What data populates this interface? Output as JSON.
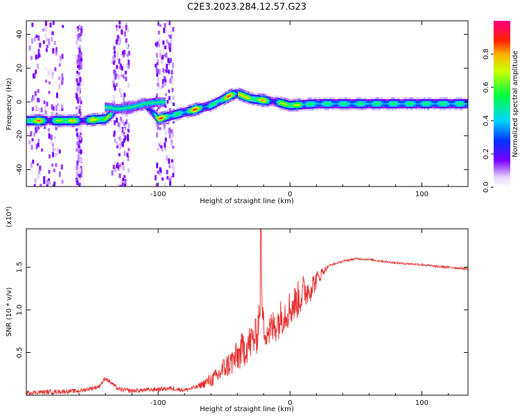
{
  "figure": {
    "title": "C2E3.2023.284.12.57.G23"
  },
  "chart_data": [
    {
      "type": "heatmap",
      "title": "C2E3.2023.284.12.57.G23",
      "xlabel": "Height of straight line (km)",
      "ylabel": "Frequency (Hz)",
      "xlim": [
        -200,
        135
      ],
      "ylim": [
        -50,
        48
      ],
      "xticks": [
        -100,
        0,
        100
      ],
      "yticks": [
        -40,
        -20,
        0,
        20,
        40
      ],
      "colorbar": {
        "label": "Normalized spectral amplitude",
        "range": [
          0,
          1
        ],
        "ticks": [
          "0.0",
          "0.2",
          "0.4",
          "0.6",
          "0.8"
        ],
        "colormap": "rainbow (white-violet-blue-cyan-green-yellow-red-magenta)"
      },
      "ridge": {
        "description": "dominant frequency ridge vs height",
        "x": [
          -200,
          -160,
          -140,
          -130,
          -120,
          -110,
          -100,
          -80,
          -60,
          -45,
          -40,
          -30,
          -20,
          -10,
          0,
          20,
          50,
          100,
          135
        ],
        "y": [
          -11,
          -11,
          -10,
          -4,
          -3,
          -1,
          -10,
          -6,
          -2,
          4,
          5,
          2,
          1,
          0,
          -2,
          -1,
          -1,
          -1,
          -1
        ]
      },
      "grid": false
    },
    {
      "type": "line",
      "xlabel": "Height of straight line (km)",
      "ylabel": "SNR (10 * v/v)",
      "ylabel_exponent": "(x10⁴)",
      "xlim": [
        -200,
        135
      ],
      "ylim": [
        0,
        1.95
      ],
      "xticks": [
        -100,
        0,
        100
      ],
      "yticks": [
        0.5,
        1.0,
        1.5
      ],
      "ytick_labels": [
        "0.5",
        "1.0",
        "1.5"
      ],
      "series": [
        {
          "color": "#e83030",
          "x": [
            -200,
            -180,
            -160,
            -145,
            -140,
            -130,
            -120,
            -100,
            -90,
            -80,
            -70,
            -60,
            -55,
            -50,
            -45,
            -40,
            -35,
            -30,
            -25,
            -22,
            -20,
            -15,
            -10,
            -5,
            0,
            5,
            10,
            15,
            20,
            25,
            30,
            40,
            50,
            60,
            70,
            80,
            90,
            100,
            110,
            120,
            135
          ],
          "y": [
            0.03,
            0.04,
            0.05,
            0.1,
            0.2,
            0.07,
            0.05,
            0.07,
            0.08,
            0.06,
            0.1,
            0.18,
            0.22,
            0.32,
            0.38,
            0.45,
            0.55,
            0.62,
            0.7,
            1.2,
            0.8,
            0.75,
            0.85,
            0.95,
            1.02,
            1.1,
            1.2,
            1.25,
            1.35,
            1.45,
            1.52,
            1.57,
            1.6,
            1.59,
            1.57,
            1.55,
            1.54,
            1.53,
            1.51,
            1.5,
            1.48
          ]
        }
      ],
      "grid": false
    }
  ]
}
